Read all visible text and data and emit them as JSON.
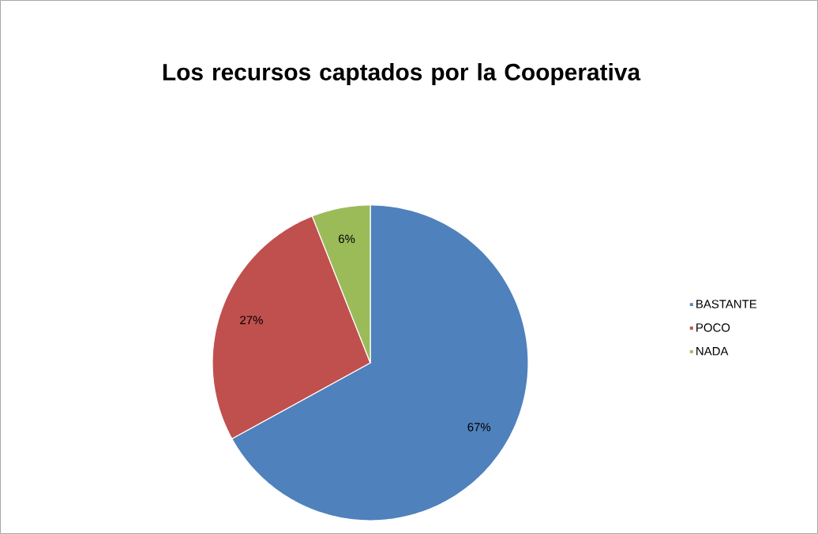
{
  "chart_data": {
    "type": "pie",
    "title": "Los recursos captados por la Cooperativa",
    "categories": [
      "BASTANTE",
      "POCO",
      "NADA"
    ],
    "values": [
      67,
      27,
      6
    ],
    "value_labels": [
      "67%",
      "27%",
      "6%"
    ],
    "colors": [
      "#4f81bd",
      "#c0504d",
      "#9bbb59"
    ],
    "legend": "right"
  }
}
